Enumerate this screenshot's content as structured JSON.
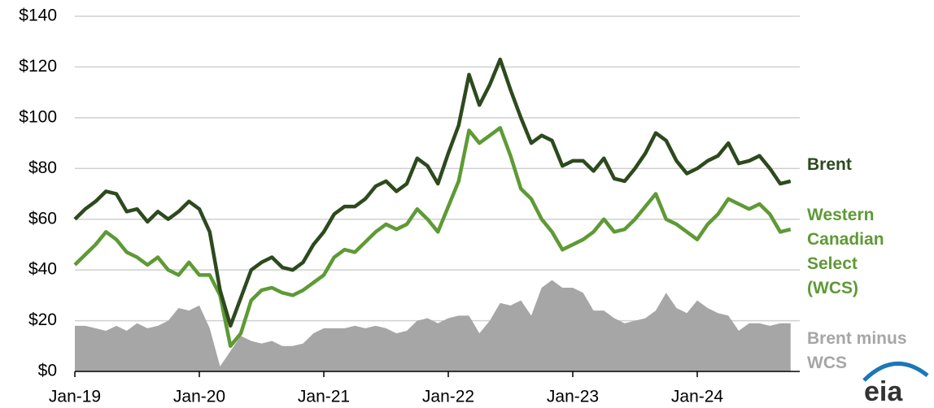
{
  "chart_data": {
    "type": "line",
    "categories": [
      "Jan-19",
      null,
      null,
      null,
      null,
      null,
      null,
      null,
      null,
      null,
      null,
      null,
      "Jan-20",
      null,
      null,
      null,
      null,
      null,
      null,
      null,
      null,
      null,
      null,
      null,
      "Jan-21",
      null,
      null,
      null,
      null,
      null,
      null,
      null,
      null,
      null,
      null,
      null,
      "Jan-22",
      null,
      null,
      null,
      null,
      null,
      null,
      null,
      null,
      null,
      null,
      null,
      "Jan-23",
      null,
      null,
      null,
      null,
      null,
      null,
      null,
      null,
      null,
      null,
      null,
      "Jan-24",
      null,
      null,
      null,
      null,
      null,
      null,
      null,
      null,
      null
    ],
    "series": [
      {
        "name": "Brent minus WCS",
        "color": "#a6a6a6",
        "kind": "area",
        "values": [
          18,
          18,
          17,
          16,
          18,
          16,
          19,
          17,
          18,
          20,
          25,
          24,
          26,
          17,
          2,
          8,
          14,
          12,
          11,
          12,
          10,
          10,
          11,
          15,
          17,
          17,
          17,
          18,
          17,
          18,
          17,
          15,
          16,
          20,
          21,
          19,
          21,
          22,
          22,
          15,
          20,
          27,
          26,
          28,
          22,
          33,
          36,
          33,
          33,
          31,
          24,
          24,
          21,
          19,
          20,
          21,
          24,
          31,
          25,
          23,
          28,
          25,
          23,
          22,
          16,
          19,
          19,
          18,
          19,
          19
        ]
      },
      {
        "name": "Western Canadian Select (WCS)",
        "color": "#5e9a35",
        "kind": "line",
        "values": [
          42,
          46,
          50,
          55,
          52,
          47,
          45,
          42,
          45,
          40,
          38,
          43,
          38,
          38,
          30,
          10,
          15,
          28,
          32,
          33,
          31,
          30,
          32,
          35,
          38,
          45,
          48,
          47,
          51,
          55,
          58,
          56,
          58,
          64,
          60,
          55,
          65,
          75,
          95,
          90,
          93,
          96,
          85,
          72,
          68,
          60,
          55,
          48,
          50,
          52,
          55,
          60,
          55,
          56,
          60,
          65,
          70,
          60,
          58,
          55,
          52,
          58,
          62,
          68,
          66,
          64,
          66,
          62,
          55,
          56
        ]
      },
      {
        "name": "Brent",
        "color": "#2d4a1e",
        "kind": "line",
        "values": [
          60,
          64,
          67,
          71,
          70,
          63,
          64,
          59,
          63,
          60,
          63,
          67,
          64,
          55,
          32,
          18,
          29,
          40,
          43,
          45,
          41,
          40,
          43,
          50,
          55,
          62,
          65,
          65,
          68,
          73,
          75,
          71,
          74,
          84,
          81,
          74,
          86,
          97,
          117,
          105,
          113,
          123,
          111,
          100,
          90,
          93,
          91,
          81,
          83,
          83,
          79,
          84,
          76,
          75,
          80,
          86,
          94,
          91,
          83,
          78,
          80,
          83,
          85,
          90,
          82,
          83,
          85,
          80,
          74,
          75
        ]
      }
    ],
    "ylim": [
      0,
      140
    ],
    "yticks": [
      {
        "value": 0,
        "label": "$0"
      },
      {
        "value": 20,
        "label": "$20"
      },
      {
        "value": 40,
        "label": "$40"
      },
      {
        "value": 60,
        "label": "$60"
      },
      {
        "value": 80,
        "label": "$80"
      },
      {
        "value": 100,
        "label": "$100"
      },
      {
        "value": 120,
        "label": "$120"
      },
      {
        "value": 140,
        "label": "$140"
      }
    ],
    "grid": true,
    "logo": "eia"
  }
}
